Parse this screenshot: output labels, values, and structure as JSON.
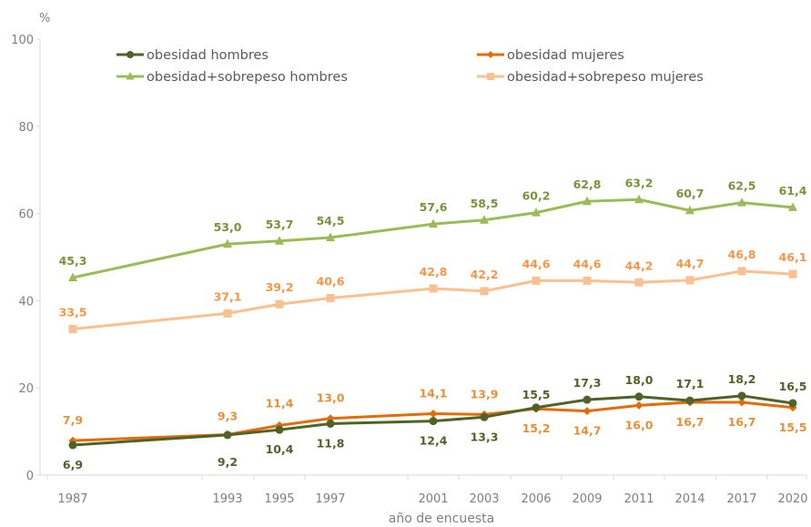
{
  "chart_data": {
    "type": "line",
    "unit_label": "%",
    "xlabel": "año de encuesta",
    "ylabel": "",
    "ylim": [
      0,
      100
    ],
    "yticks": [
      0,
      20,
      40,
      60,
      80,
      100
    ],
    "categories": [
      "1987",
      "1993",
      "1995",
      "1997",
      "2001",
      "2003",
      "2006",
      "2009",
      "2011",
      "2014",
      "2017",
      "2020"
    ],
    "legend": "top",
    "grid": false,
    "series": [
      {
        "name": "obesidad hombres",
        "color": "#4f6228",
        "marker": "circle",
        "values": [
          6.9,
          9.2,
          10.4,
          11.8,
          12.4,
          13.3,
          15.5,
          17.3,
          18.0,
          17.1,
          18.2,
          16.5
        ],
        "labels": [
          "6,9",
          "9,2",
          "10,4",
          "11,8",
          "12,4",
          "13,3",
          "15,5",
          "17,3",
          "18,0",
          "17,1",
          "18,2",
          "16,5"
        ]
      },
      {
        "name": "obesidad mujeres",
        "color": "#e36c09",
        "label_color": "#e69138",
        "marker": "diamond",
        "values": [
          7.9,
          9.3,
          11.4,
          13.0,
          14.1,
          13.9,
          15.2,
          14.7,
          16.0,
          16.7,
          16.7,
          15.5
        ],
        "labels": [
          "7,9",
          "9,3",
          "11,4",
          "13,0",
          "14,1",
          "13,9",
          "15,2",
          "14,7",
          "16,0",
          "16,7",
          "16,7",
          "15,5"
        ]
      },
      {
        "name": "obesidad+sobrepeso hombres",
        "color": "#9bbb59",
        "label_color": "#77933c",
        "marker": "triangle",
        "values": [
          45.3,
          53.0,
          53.7,
          54.5,
          57.6,
          58.5,
          60.2,
          62.8,
          63.2,
          60.7,
          62.5,
          61.4
        ],
        "labels": [
          "45,3",
          "53,0",
          "53,7",
          "54,5",
          "57,6",
          "58,5",
          "60,2",
          "62,8",
          "63,2",
          "60,7",
          "62,5",
          "61,4"
        ]
      },
      {
        "name": "obesidad+sobrepeso mujeres",
        "color": "#fac090",
        "label_color": "#f79646",
        "marker": "square",
        "values": [
          33.5,
          37.1,
          39.2,
          40.6,
          42.8,
          42.2,
          44.6,
          44.6,
          44.2,
          44.7,
          46.8,
          46.1
        ],
        "labels": [
          "33,5",
          "37,1",
          "39,2",
          "40,6",
          "42,8",
          "42,2",
          "44,6",
          "44,6",
          "44,2",
          "44,7",
          "46,8",
          "46,1"
        ]
      }
    ]
  }
}
